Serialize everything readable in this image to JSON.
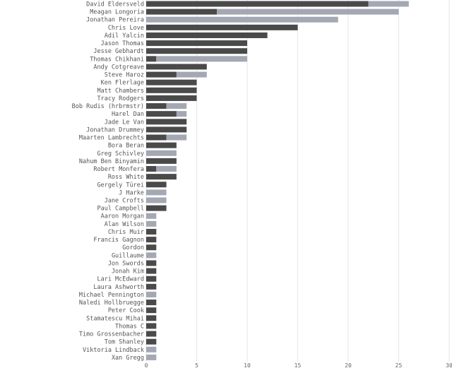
{
  "chart_data": {
    "type": "bar",
    "orientation": "horizontal",
    "stacked": true,
    "xlim": [
      0,
      30
    ],
    "x_ticks": [
      0,
      5,
      10,
      15,
      20,
      25,
      30
    ],
    "grid": true,
    "colors": {
      "dark": "#4a4a4a",
      "light": "#a3a8b3"
    },
    "series": [
      {
        "values": [
          22,
          7,
          0,
          15,
          12,
          10,
          10,
          1,
          6,
          3,
          5,
          5,
          5,
          2,
          3,
          4,
          4,
          2,
          3,
          0,
          3,
          1,
          3,
          2,
          0,
          0,
          2,
          0,
          0,
          1,
          1,
          1,
          0,
          1,
          1,
          1,
          1,
          0,
          1,
          1,
          1,
          1,
          1,
          1,
          0,
          0
        ]
      },
      {
        "values": [
          4,
          18,
          19,
          0,
          0,
          0,
          0,
          9,
          0,
          3,
          0,
          0,
          0,
          2,
          1,
          0,
          0,
          2,
          0,
          3,
          0,
          2,
          0,
          0,
          2,
          2,
          0,
          1,
          1,
          0,
          0,
          0,
          1,
          0,
          0,
          0,
          0,
          1,
          0,
          0,
          0,
          0,
          0,
          0,
          1,
          1
        ]
      }
    ],
    "categories": [
      "David Eldersveld",
      "Meagan Longoria",
      "Jonathan Pereira",
      "Chris Love",
      "Adil Yalcin",
      "Jason Thomas",
      "Jesse Gebhardt",
      "Thomas Chikhani",
      "Andy Cotgreave",
      "Steve Haroz",
      "Ken Flerlage",
      "Matt Chambers",
      "Tracy Rodgers",
      "Bob Rudis (hrbrmstr)",
      "Harel Dan",
      "Jade Le Van",
      "Jonathan Drummey",
      "Maarten Lambrechts",
      "Bora Beran",
      "Greg Schivley",
      "Nahum Ben Binyamin",
      "Robert Monfera",
      "Ross White",
      "Gergely Türei",
      "J Harke",
      "Jane Crofts",
      "Paul Campbell",
      "Aaron Morgan",
      "Alan Wilson",
      "Chris Muir",
      "Francis Gagnon",
      "Gordon",
      "Guillaume",
      "Jon Swords",
      "Jonah Kim",
      "Lari McEdward",
      "Laura Ashworth",
      "Michael Pennington",
      "Naledi Hollbruegge",
      "Peter Cook",
      "Stamatescu Mihai",
      "Thomas C",
      "Timo Grossenbacher",
      "Tom Shanley",
      "Viktoria Lindback",
      "Xan Gregg"
    ]
  }
}
